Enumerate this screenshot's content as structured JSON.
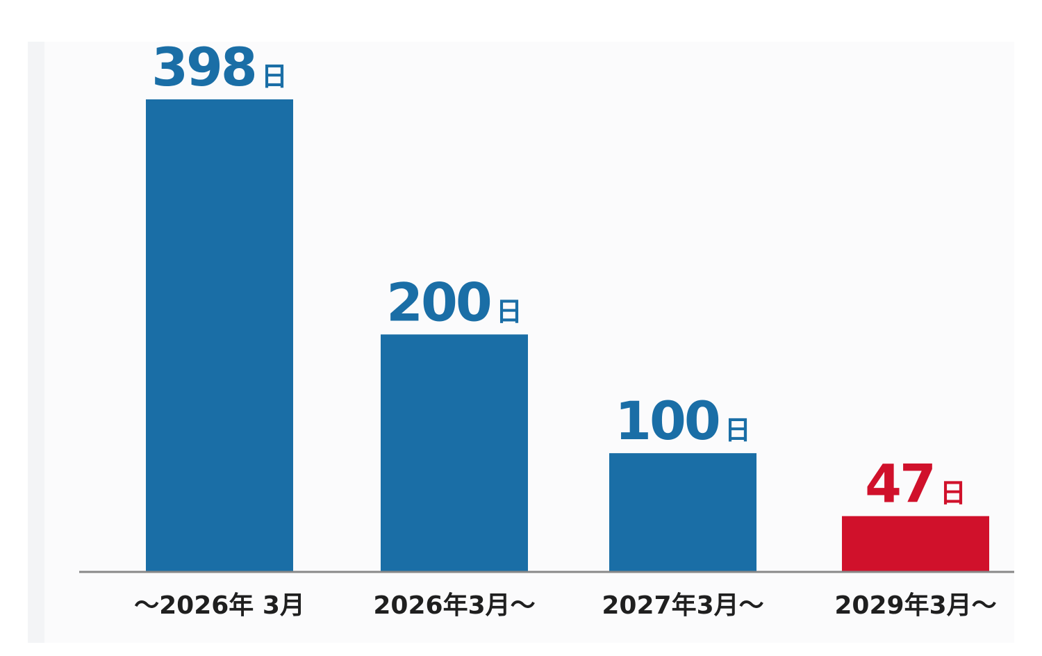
{
  "chart_data": {
    "type": "bar",
    "categories": [
      "～2026年 3月",
      "2026年3月～",
      "2027年3月～",
      "2029年3月～"
    ],
    "values": [
      398,
      200,
      100,
      47
    ],
    "value_labels": [
      "398",
      "200",
      "100",
      "47"
    ],
    "value_unit": "日",
    "bar_colors": [
      "#1a6ea6",
      "#1a6ea6",
      "#1a6ea6",
      "#d0112b"
    ],
    "title": "",
    "xlabel": "",
    "ylabel": "",
    "ylim": [
      0,
      440
    ],
    "grid": false,
    "legend": "none"
  }
}
